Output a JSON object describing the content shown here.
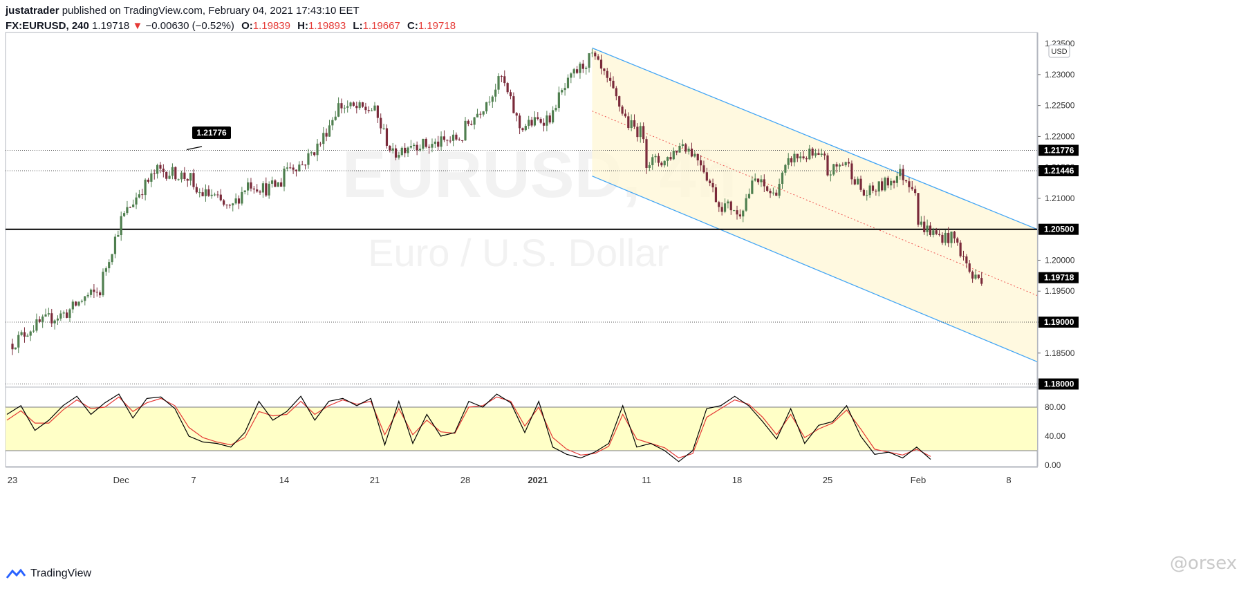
{
  "header": {
    "author": "justatrader",
    "published_text": "published on TradingView.com, February 04, 2021 17:43:10 EET",
    "symbol": "FX:EURUSD, 240",
    "last": "1.19718",
    "change": "−0.00630 (−0.52%)",
    "o_label": "O:",
    "o": "1.19839",
    "h_label": "H:",
    "h": "1.19893",
    "l_label": "L:",
    "l": "1.19667",
    "c_label": "C:",
    "c": "1.19718"
  },
  "watermark": {
    "symbol": "EURUSD, 4h",
    "name": "Euro / U.S. Dollar"
  },
  "currency_badge": "USD",
  "brand": "TradingView",
  "corner_watermark": "@orsex",
  "colors": {
    "up_candle": "#4f7f4f",
    "down_candle": "#7a2a3a",
    "channel_line": "#42a5f5",
    "channel_fill": "#fff7d6",
    "stoch_band": "#ffffc7",
    "stoch_k": "#000000",
    "stoch_d": "#e53935"
  },
  "chart_data": [
    {
      "type": "candlestick",
      "title": "FX:EURUSD, 240",
      "y_axis_ticks": [
        "1.23000",
        "1.22500",
        "1.22000",
        "1.21500",
        "1.21000",
        "1.20500",
        "1.20000",
        "1.19500",
        "1.19000",
        "1.18500",
        "1.18000"
      ],
      "y_axis_top_partial": "1.23500",
      "ylim": [
        1.1795,
        1.2368
      ],
      "x_axis_ticks": [
        "23",
        "Dec",
        "7",
        "14",
        "21",
        "28",
        "2021",
        "11",
        "18",
        "25",
        "Feb",
        "8"
      ],
      "price_labels": [
        {
          "price": 1.21776,
          "label": "1.21776"
        },
        {
          "price": 1.21446,
          "label": "1.21446"
        },
        {
          "price": 1.205,
          "label": "1.20500"
        },
        {
          "price": 1.19718,
          "label": "1.19718"
        },
        {
          "price": 1.19,
          "label": "1.19000"
        },
        {
          "price": 1.18,
          "label": "1.18000"
        }
      ],
      "horizontal_levels": [
        {
          "price": 1.21776,
          "style": "dotted"
        },
        {
          "price": 1.21446,
          "style": "dotted"
        },
        {
          "price": 1.205,
          "style": "solid-thick"
        },
        {
          "price": 1.19,
          "style": "dotted"
        },
        {
          "price": 1.18,
          "style": "dotted"
        }
      ],
      "callout": {
        "text": "1.21776",
        "price": 1.21776
      },
      "descending_channel": {
        "start": "2021-01-06",
        "upper": [
          1.2343,
          1.205
        ],
        "mid": [
          1.2241,
          1.1943
        ],
        "lower": [
          1.2136,
          1.1836
        ]
      },
      "close_path": [
        {
          "x": "2020-11-23",
          "y": 1.1865
        },
        {
          "x": "2020-11-24",
          "y": 1.189
        },
        {
          "x": "2020-11-25",
          "y": 1.1905
        },
        {
          "x": "2020-11-26",
          "y": 1.1915
        },
        {
          "x": "2020-11-27",
          "y": 1.194
        },
        {
          "x": "2020-11-30",
          "y": 1.1975
        },
        {
          "x": "2020-12-01",
          "y": 1.2065
        },
        {
          "x": "2020-12-02",
          "y": 1.211
        },
        {
          "x": "2020-12-03",
          "y": 1.2145
        },
        {
          "x": "2020-12-04",
          "y": 1.214
        },
        {
          "x": "2020-12-07",
          "y": 1.211
        },
        {
          "x": "2020-12-08",
          "y": 1.2105
        },
        {
          "x": "2020-12-09",
          "y": 1.208
        },
        {
          "x": "2020-12-10",
          "y": 1.2125
        },
        {
          "x": "2020-12-11",
          "y": 1.2115
        },
        {
          "x": "2020-12-14",
          "y": 1.215
        },
        {
          "x": "2020-12-15",
          "y": 1.2155
        },
        {
          "x": "2020-12-16",
          "y": 1.219
        },
        {
          "x": "2020-12-17",
          "y": 1.225
        },
        {
          "x": "2020-12-18",
          "y": 1.2245
        },
        {
          "x": "2020-12-21",
          "y": 1.224
        },
        {
          "x": "2020-12-22",
          "y": 1.217
        },
        {
          "x": "2020-12-23",
          "y": 1.219
        },
        {
          "x": "2020-12-24",
          "y": 1.2185
        },
        {
          "x": "2020-12-28",
          "y": 1.2215
        },
        {
          "x": "2020-12-29",
          "y": 1.225
        },
        {
          "x": "2020-12-30",
          "y": 1.2295
        },
        {
          "x": "2020-12-31",
          "y": 1.2215
        },
        {
          "x": "2021-01-04",
          "y": 1.2255
        },
        {
          "x": "2021-01-05",
          "y": 1.23
        },
        {
          "x": "2021-01-06",
          "y": 1.233
        },
        {
          "x": "2021-01-07",
          "y": 1.228
        },
        {
          "x": "2021-01-08",
          "y": 1.222
        },
        {
          "x": "2021-01-11",
          "y": 1.216
        },
        {
          "x": "2021-01-12",
          "y": 1.216
        },
        {
          "x": "2021-01-13",
          "y": 1.219
        },
        {
          "x": "2021-01-14",
          "y": 1.216
        },
        {
          "x": "2021-01-15",
          "y": 1.209
        },
        {
          "x": "2021-01-18",
          "y": 1.207
        },
        {
          "x": "2021-01-19",
          "y": 1.213
        },
        {
          "x": "2021-01-20",
          "y": 1.2105
        },
        {
          "x": "2021-01-21",
          "y": 1.2165
        },
        {
          "x": "2021-01-22",
          "y": 1.217
        },
        {
          "x": "2021-01-25",
          "y": 1.214
        },
        {
          "x": "2021-01-26",
          "y": 1.216
        },
        {
          "x": "2021-01-27",
          "y": 1.2105
        },
        {
          "x": "2021-01-28",
          "y": 1.212
        },
        {
          "x": "2021-01-29",
          "y": 1.214
        },
        {
          "x": "2021-02-01",
          "y": 1.206
        },
        {
          "x": "2021-02-02",
          "y": 1.204
        },
        {
          "x": "2021-02-03",
          "y": 1.2035
        },
        {
          "x": "2021-02-04",
          "y": 1.19718
        }
      ]
    },
    {
      "type": "line",
      "title": "Stochastic",
      "y_axis_ticks": [
        "80.00",
        "40.00",
        "0.00"
      ],
      "ylim": [
        0,
        100
      ],
      "band": [
        20,
        80
      ],
      "series": [
        {
          "values": [
            70,
            82,
            48,
            62,
            82,
            95,
            70,
            86,
            98,
            65,
            92,
            94,
            78,
            40,
            32,
            30,
            25,
            45,
            88,
            62,
            74,
            95,
            62,
            88,
            92,
            82,
            92,
            28,
            88,
            30,
            70,
            40,
            45,
            88,
            80,
            98,
            86,
            45,
            88,
            25,
            15,
            10,
            18,
            30,
            82,
            25,
            30,
            20,
            5,
            20,
            78,
            82,
            95,
            82,
            60,
            36,
            78,
            30,
            55,
            60,
            82,
            40,
            15,
            18,
            10,
            25,
            8
          ]
        },
        {
          "values": [
            62,
            75,
            58,
            58,
            76,
            90,
            78,
            80,
            94,
            74,
            86,
            92,
            82,
            52,
            38,
            32,
            28,
            38,
            74,
            68,
            70,
            88,
            70,
            82,
            90,
            84,
            88,
            42,
            78,
            42,
            62,
            46,
            44,
            80,
            82,
            94,
            88,
            54,
            80,
            38,
            22,
            14,
            16,
            26,
            70,
            36,
            30,
            24,
            10,
            16,
            66,
            78,
            90,
            84,
            66,
            42,
            70,
            38,
            50,
            58,
            76,
            50,
            22,
            18,
            14,
            22,
            12
          ]
        }
      ]
    }
  ]
}
